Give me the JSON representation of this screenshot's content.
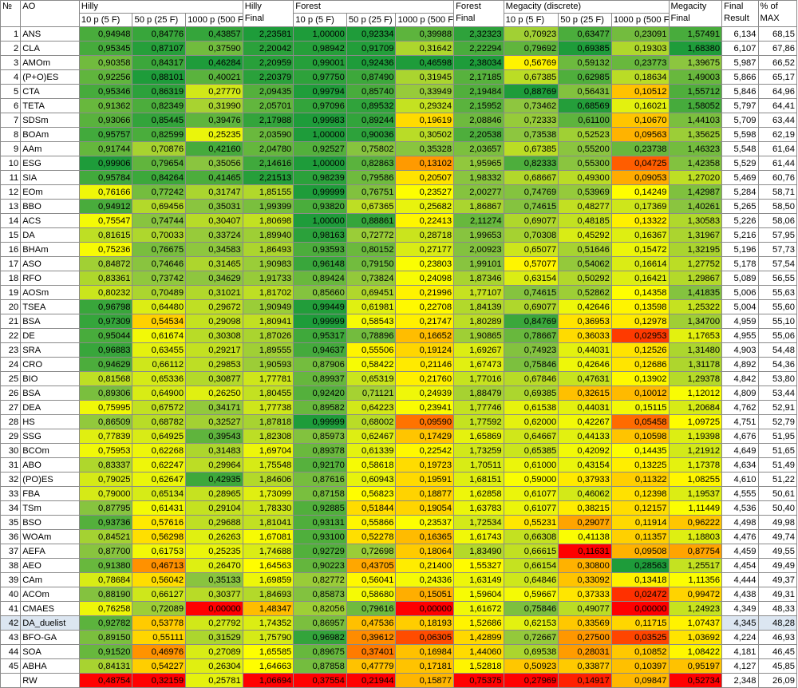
{
  "header": {
    "no": "№",
    "ao": "AO",
    "hilly": "Hilly",
    "hilly_final": [
      "Hilly",
      "Final"
    ],
    "forest": "Forest",
    "forest_final": [
      "Forest",
      "Final"
    ],
    "megacity": "Megacity (discrete)",
    "megacity_final": [
      "Megacity",
      "Final"
    ],
    "final_result": [
      "Final",
      "Result"
    ],
    "pct_max": [
      "% of",
      "MAX"
    ],
    "sub": [
      "10 p (5 F)",
      "50 p (25 F)",
      "1000 p (500 F)"
    ]
  },
  "colors": {
    "red": "#ff0000",
    "orange": "#ff8c00",
    "yellow": "#ffff00",
    "lime": "#8dc63f",
    "green": "#1e9c3a",
    "highlight_row": "#dce6f1"
  },
  "rows": [
    {
      "n": "1",
      "ao": "ANS",
      "v": [
        "0,94948",
        "0,84776",
        "0,43857",
        "2,23581",
        "1,00000",
        "0,92334",
        "0,39988",
        "2,32323",
        "0,70923",
        "0,63477",
        "0,23091",
        "1,57491"
      ],
      "fr": "6,134",
      "pct": "68,15"
    },
    {
      "n": "2",
      "ao": "CLA",
      "v": [
        "0,95345",
        "0,87107",
        "0,37590",
        "2,20042",
        "0,98942",
        "0,91709",
        "0,31642",
        "2,22294",
        "0,79692",
        "0,69385",
        "0,19303",
        "1,68380"
      ],
      "fr": "6,107",
      "pct": "67,86"
    },
    {
      "n": "3",
      "ao": "AMOm",
      "v": [
        "0,90358",
        "0,84317",
        "0,46284",
        "2,20959",
        "0,99001",
        "0,92436",
        "0,46598",
        "2,38034",
        "0,56769",
        "0,59132",
        "0,23773",
        "1,39675"
      ],
      "fr": "5,987",
      "pct": "66,52"
    },
    {
      "n": "4",
      "ao": "(P+O)ES",
      "v": [
        "0,92256",
        "0,88101",
        "0,40021",
        "2,20379",
        "0,97750",
        "0,87490",
        "0,31945",
        "2,17185",
        "0,67385",
        "0,62985",
        "0,18634",
        "1,49003"
      ],
      "fr": "5,866",
      "pct": "65,17"
    },
    {
      "n": "5",
      "ao": "CTA",
      "v": [
        "0,95346",
        "0,86319",
        "0,27770",
        "2,09435",
        "0,99794",
        "0,85740",
        "0,33949",
        "2,19484",
        "0,88769",
        "0,56431",
        "0,10512",
        "1,55712"
      ],
      "fr": "5,846",
      "pct": "64,96"
    },
    {
      "n": "6",
      "ao": "TETA",
      "v": [
        "0,91362",
        "0,82349",
        "0,31990",
        "2,05701",
        "0,97096",
        "0,89532",
        "0,29324",
        "2,15952",
        "0,73462",
        "0,68569",
        "0,16021",
        "1,58052"
      ],
      "fr": "5,797",
      "pct": "64,41"
    },
    {
      "n": "7",
      "ao": "SDSm",
      "v": [
        "0,93066",
        "0,85445",
        "0,39476",
        "2,17988",
        "0,99983",
        "0,89244",
        "0,19619",
        "2,08846",
        "0,72333",
        "0,61100",
        "0,10670",
        "1,44103"
      ],
      "fr": "5,709",
      "pct": "63,44"
    },
    {
      "n": "8",
      "ao": "BOAm",
      "v": [
        "0,95757",
        "0,82599",
        "0,25235",
        "2,03590",
        "1,00000",
        "0,90036",
        "0,30502",
        "2,20538",
        "0,73538",
        "0,52523",
        "0,09563",
        "1,35625"
      ],
      "fr": "5,598",
      "pct": "62,19"
    },
    {
      "n": "9",
      "ao": "AAm",
      "v": [
        "0,91744",
        "0,70876",
        "0,42160",
        "2,04780",
        "0,92527",
        "0,75802",
        "0,35328",
        "2,03657",
        "0,67385",
        "0,55200",
        "0,23738",
        "1,46323"
      ],
      "fr": "5,548",
      "pct": "61,64"
    },
    {
      "n": "10",
      "ao": "ESG",
      "v": [
        "0,99906",
        "0,79654",
        "0,35056",
        "2,14616",
        "1,00000",
        "0,82863",
        "0,13102",
        "1,95965",
        "0,82333",
        "0,55300",
        "0,04725",
        "1,42358"
      ],
      "fr": "5,529",
      "pct": "61,44"
    },
    {
      "n": "11",
      "ao": "SIA",
      "v": [
        "0,95784",
        "0,84264",
        "0,41465",
        "2,21513",
        "0,98239",
        "0,79586",
        "0,20507",
        "1,98332",
        "0,68667",
        "0,49300",
        "0,09053",
        "1,27020"
      ],
      "fr": "5,469",
      "pct": "60,76"
    },
    {
      "n": "12",
      "ao": "EOm",
      "v": [
        "0,76166",
        "0,77242",
        "0,31747",
        "1,85155",
        "0,99999",
        "0,76751",
        "0,23527",
        "2,00277",
        "0,74769",
        "0,53969",
        "0,14249",
        "1,42987"
      ],
      "fr": "5,284",
      "pct": "58,71"
    },
    {
      "n": "13",
      "ao": "BBO",
      "v": [
        "0,94912",
        "0,69456",
        "0,35031",
        "1,99399",
        "0,93820",
        "0,67365",
        "0,25682",
        "1,86867",
        "0,74615",
        "0,48277",
        "0,17369",
        "1,40261"
      ],
      "fr": "5,265",
      "pct": "58,50"
    },
    {
      "n": "14",
      "ao": "ACS",
      "v": [
        "0,75547",
        "0,74744",
        "0,30407",
        "1,80698",
        "1,00000",
        "0,88861",
        "0,22413",
        "2,11274",
        "0,69077",
        "0,48185",
        "0,13322",
        "1,30583"
      ],
      "fr": "5,226",
      "pct": "58,06"
    },
    {
      "n": "15",
      "ao": "DA",
      "v": [
        "0,81615",
        "0,70033",
        "0,33724",
        "1,89940",
        "0,98163",
        "0,72772",
        "0,28718",
        "1,99653",
        "0,70308",
        "0,45292",
        "0,16367",
        "1,31967"
      ],
      "fr": "5,216",
      "pct": "57,95"
    },
    {
      "n": "16",
      "ao": "BHAm",
      "v": [
        "0,75236",
        "0,76675",
        "0,34583",
        "1,86493",
        "0,93593",
        "0,80152",
        "0,27177",
        "2,00923",
        "0,65077",
        "0,51646",
        "0,15472",
        "1,32195"
      ],
      "fr": "5,196",
      "pct": "57,73"
    },
    {
      "n": "17",
      "ao": "ASO",
      "v": [
        "0,84872",
        "0,74646",
        "0,31465",
        "1,90983",
        "0,96148",
        "0,79150",
        "0,23803",
        "1,99101",
        "0,57077",
        "0,54062",
        "0,16614",
        "1,27752"
      ],
      "fr": "5,178",
      "pct": "57,54"
    },
    {
      "n": "18",
      "ao": "RFO",
      "v": [
        "0,83361",
        "0,73742",
        "0,34629",
        "1,91733",
        "0,89424",
        "0,73824",
        "0,24098",
        "1,87346",
        "0,63154",
        "0,50292",
        "0,16421",
        "1,29867"
      ],
      "fr": "5,089",
      "pct": "56,55"
    },
    {
      "n": "19",
      "ao": "AOSm",
      "v": [
        "0,80232",
        "0,70489",
        "0,31021",
        "1,81702",
        "0,85660",
        "0,69451",
        "0,21996",
        "1,77107",
        "0,74615",
        "0,52862",
        "0,14358",
        "1,41835"
      ],
      "fr": "5,006",
      "pct": "55,63"
    },
    {
      "n": "20",
      "ao": "TSEA",
      "v": [
        "0,96798",
        "0,64480",
        "0,29672",
        "1,90949",
        "0,99449",
        "0,61981",
        "0,22708",
        "1,84139",
        "0,69077",
        "0,42646",
        "0,13598",
        "1,25322"
      ],
      "fr": "5,004",
      "pct": "55,60"
    },
    {
      "n": "21",
      "ao": "BSA",
      "v": [
        "0,97309",
        "0,54534",
        "0,29098",
        "1,80941",
        "0,99999",
        "0,58543",
        "0,21747",
        "1,80289",
        "0,84769",
        "0,36953",
        "0,12978",
        "1,34700"
      ],
      "fr": "4,959",
      "pct": "55,10"
    },
    {
      "n": "22",
      "ao": "DE",
      "v": [
        "0,95044",
        "0,61674",
        "0,30308",
        "1,87026",
        "0,95317",
        "0,78896",
        "0,16652",
        "1,90865",
        "0,78667",
        "0,36033",
        "0,02953",
        "1,17653"
      ],
      "fr": "4,955",
      "pct": "55,06"
    },
    {
      "n": "23",
      "ao": "SRA",
      "v": [
        "0,96883",
        "0,63455",
        "0,29217",
        "1,89555",
        "0,94637",
        "0,55506",
        "0,19124",
        "1,69267",
        "0,74923",
        "0,44031",
        "0,12526",
        "1,31480"
      ],
      "fr": "4,903",
      "pct": "54,48"
    },
    {
      "n": "24",
      "ao": "CRO",
      "v": [
        "0,94629",
        "0,66112",
        "0,29853",
        "1,90593",
        "0,87906",
        "0,58422",
        "0,21146",
        "1,67473",
        "0,75846",
        "0,42646",
        "0,12686",
        "1,31178"
      ],
      "fr": "4,892",
      "pct": "54,36"
    },
    {
      "n": "25",
      "ao": "BIO",
      "v": [
        "0,81568",
        "0,65336",
        "0,30877",
        "1,77781",
        "0,89937",
        "0,65319",
        "0,21760",
        "1,77016",
        "0,67846",
        "0,47631",
        "0,13902",
        "1,29378"
      ],
      "fr": "4,842",
      "pct": "53,80"
    },
    {
      "n": "26",
      "ao": "BSA",
      "v": [
        "0,89306",
        "0,64900",
        "0,26250",
        "1,80455",
        "0,92420",
        "0,71121",
        "0,24939",
        "1,88479",
        "0,69385",
        "0,32615",
        "0,10012",
        "1,12012"
      ],
      "fr": "4,809",
      "pct": "53,44"
    },
    {
      "n": "27",
      "ao": "DEA",
      "v": [
        "0,75995",
        "0,67572",
        "0,34171",
        "1,77738",
        "0,89582",
        "0,64223",
        "0,23941",
        "1,77746",
        "0,61538",
        "0,44031",
        "0,15115",
        "1,20684"
      ],
      "fr": "4,762",
      "pct": "52,91"
    },
    {
      "n": "28",
      "ao": "HS",
      "v": [
        "0,86509",
        "0,68782",
        "0,32527",
        "1,87818",
        "0,99999",
        "0,68002",
        "0,09590",
        "1,77592",
        "0,62000",
        "0,42267",
        "0,05458",
        "1,09725"
      ],
      "fr": "4,751",
      "pct": "52,79"
    },
    {
      "n": "29",
      "ao": "SSG",
      "v": [
        "0,77839",
        "0,64925",
        "0,39543",
        "1,82308",
        "0,85973",
        "0,62467",
        "0,17429",
        "1,65869",
        "0,64667",
        "0,44133",
        "0,10598",
        "1,19398"
      ],
      "fr": "4,676",
      "pct": "51,95"
    },
    {
      "n": "30",
      "ao": "BCOm",
      "v": [
        "0,75953",
        "0,62268",
        "0,31483",
        "1,69704",
        "0,89378",
        "0,61339",
        "0,22542",
        "1,73259",
        "0,65385",
        "0,42092",
        "0,14435",
        "1,21912"
      ],
      "fr": "4,649",
      "pct": "51,65"
    },
    {
      "n": "31",
      "ao": "ABO",
      "v": [
        "0,83337",
        "0,62247",
        "0,29964",
        "1,75548",
        "0,92170",
        "0,58618",
        "0,19723",
        "1,70511",
        "0,61000",
        "0,43154",
        "0,13225",
        "1,17378"
      ],
      "fr": "4,634",
      "pct": "51,49"
    },
    {
      "n": "32",
      "ao": "(PO)ES",
      "v": [
        "0,79025",
        "0,62647",
        "0,42935",
        "1,84606",
        "0,87616",
        "0,60943",
        "0,19591",
        "1,68151",
        "0,59000",
        "0,37933",
        "0,11322",
        "1,08255"
      ],
      "fr": "4,610",
      "pct": "51,22"
    },
    {
      "n": "33",
      "ao": "FBA",
      "v": [
        "0,79000",
        "0,65134",
        "0,28965",
        "1,73099",
        "0,87158",
        "0,56823",
        "0,18877",
        "1,62858",
        "0,61077",
        "0,46062",
        "0,12398",
        "1,19537"
      ],
      "fr": "4,555",
      "pct": "50,61"
    },
    {
      "n": "34",
      "ao": "TSm",
      "v": [
        "0,87795",
        "0,61431",
        "0,29104",
        "1,78330",
        "0,92885",
        "0,51844",
        "0,19054",
        "1,63783",
        "0,61077",
        "0,38215",
        "0,12157",
        "1,11449"
      ],
      "fr": "4,536",
      "pct": "50,40"
    },
    {
      "n": "35",
      "ao": "BSO",
      "v": [
        "0,93736",
        "0,57616",
        "0,29688",
        "1,81041",
        "0,93131",
        "0,55866",
        "0,23537",
        "1,72534",
        "0,55231",
        "0,29077",
        "0,11914",
        "0,96222"
      ],
      "fr": "4,498",
      "pct": "49,98"
    },
    {
      "n": "36",
      "ao": "WOAm",
      "v": [
        "0,84521",
        "0,56298",
        "0,26263",
        "1,67081",
        "0,93100",
        "0,52278",
        "0,16365",
        "1,61743",
        "0,66308",
        "0,41138",
        "0,11357",
        "1,18803"
      ],
      "fr": "4,476",
      "pct": "49,74"
    },
    {
      "n": "37",
      "ao": "AEFA",
      "v": [
        "0,87700",
        "0,61753",
        "0,25235",
        "1,74688",
        "0,92729",
        "0,72698",
        "0,18064",
        "1,83490",
        "0,66615",
        "0,11631",
        "0,09508",
        "0,87754"
      ],
      "fr": "4,459",
      "pct": "49,55"
    },
    {
      "n": "38",
      "ao": "AEO",
      "v": [
        "0,91380",
        "0,46713",
        "0,26470",
        "1,64563",
        "0,90223",
        "0,43705",
        "0,21400",
        "1,55327",
        "0,66154",
        "0,30800",
        "0,28563",
        "1,25517"
      ],
      "fr": "4,454",
      "pct": "49,49"
    },
    {
      "n": "39",
      "ao": "CAm",
      "v": [
        "0,78684",
        "0,56042",
        "0,35133",
        "1,69859",
        "0,82772",
        "0,56041",
        "0,24336",
        "1,63149",
        "0,64846",
        "0,33092",
        "0,13418",
        "1,11356"
      ],
      "fr": "4,444",
      "pct": "49,37"
    },
    {
      "n": "40",
      "ao": "ACOm",
      "v": [
        "0,88190",
        "0,66127",
        "0,30377",
        "1,84693",
        "0,85873",
        "0,58680",
        "0,15051",
        "1,59604",
        "0,59667",
        "0,37333",
        "0,02472",
        "0,99472"
      ],
      "fr": "4,438",
      "pct": "49,31"
    },
    {
      "n": "41",
      "ao": "CMAES",
      "v": [
        "0,76258",
        "0,72089",
        "0,00000",
        "1,48347",
        "0,82056",
        "0,79616",
        "0,00000",
        "1,61672",
        "0,75846",
        "0,49077",
        "0,00000",
        "1,24923"
      ],
      "fr": "4,349",
      "pct": "48,33"
    },
    {
      "n": "42",
      "ao": "DA_duelist",
      "v": [
        "0,92782",
        "0,53778",
        "0,27792",
        "1,74352",
        "0,86957",
        "0,47536",
        "0,18193",
        "1,52686",
        "0,62153",
        "0,33569",
        "0,11715",
        "1,07437"
      ],
      "fr": "4,345",
      "pct": "48,28"
    },
    {
      "n": "43",
      "ao": "BFO-GA",
      "v": [
        "0,89150",
        "0,55111",
        "0,31529",
        "1,75790",
        "0,96982",
        "0,39612",
        "0,06305",
        "1,42899",
        "0,72667",
        "0,27500",
        "0,03525",
        "1,03692"
      ],
      "fr": "4,224",
      "pct": "46,93"
    },
    {
      "n": "44",
      "ao": "SOA",
      "v": [
        "0,91520",
        "0,46976",
        "0,27089",
        "1,65585",
        "0,89675",
        "0,37401",
        "0,16984",
        "1,44060",
        "0,69538",
        "0,28031",
        "0,10852",
        "1,08422"
      ],
      "fr": "4,181",
      "pct": "46,45"
    },
    {
      "n": "45",
      "ao": "ABHA",
      "v": [
        "0,84131",
        "0,54227",
        "0,26304",
        "1,64663",
        "0,87858",
        "0,47779",
        "0,17181",
        "1,52818",
        "0,50923",
        "0,33877",
        "0,10397",
        "0,95197"
      ],
      "fr": "4,127",
      "pct": "45,85"
    },
    {
      "n": "",
      "ao": "RW",
      "v": [
        "0,48754",
        "0,32159",
        "0,25781",
        "1,06694",
        "0,37554",
        "0,21944",
        "0,15877",
        "0,75375",
        "0,27969",
        "0,14917",
        "0,09847",
        "0,52734"
      ],
      "fr": "2,348",
      "pct": "26,09"
    }
  ]
}
